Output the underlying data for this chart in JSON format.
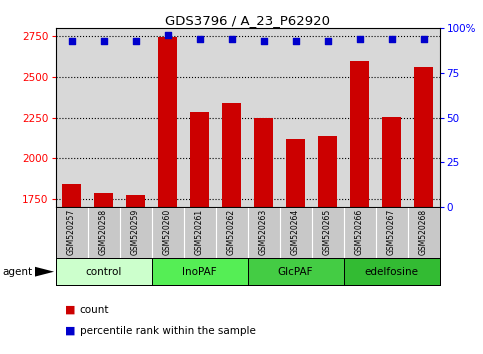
{
  "title": "GDS3796 / A_23_P62920",
  "samples": [
    "GSM520257",
    "GSM520258",
    "GSM520259",
    "GSM520260",
    "GSM520261",
    "GSM520262",
    "GSM520263",
    "GSM520264",
    "GSM520265",
    "GSM520266",
    "GSM520267",
    "GSM520268"
  ],
  "counts": [
    1845,
    1785,
    1775,
    2745,
    2285,
    2340,
    2250,
    2120,
    2140,
    2600,
    2255,
    2560
  ],
  "percentiles": [
    93,
    93,
    93,
    96,
    94,
    94,
    93,
    93,
    93,
    94,
    94,
    94
  ],
  "groups": [
    {
      "label": "control",
      "start": 0,
      "end": 3,
      "color": "#ccffcc"
    },
    {
      "label": "InoPAF",
      "start": 3,
      "end": 6,
      "color": "#55ee55"
    },
    {
      "label": "GlcPAF",
      "start": 6,
      "end": 9,
      "color": "#44cc44"
    },
    {
      "label": "edelfosine",
      "start": 9,
      "end": 12,
      "color": "#33bb33"
    }
  ],
  "ylim_left": [
    1700,
    2800
  ],
  "ylim_right": [
    0,
    100
  ],
  "yticks_left": [
    1750,
    2000,
    2250,
    2500,
    2750
  ],
  "yticks_right": [
    0,
    25,
    50,
    75,
    100
  ],
  "bar_color": "#cc0000",
  "dot_color": "#0000cc",
  "bar_width": 0.6,
  "sample_bg_color": "#c8c8c8",
  "plot_bg": "#d8d8d8",
  "white_color": "#ffffff"
}
